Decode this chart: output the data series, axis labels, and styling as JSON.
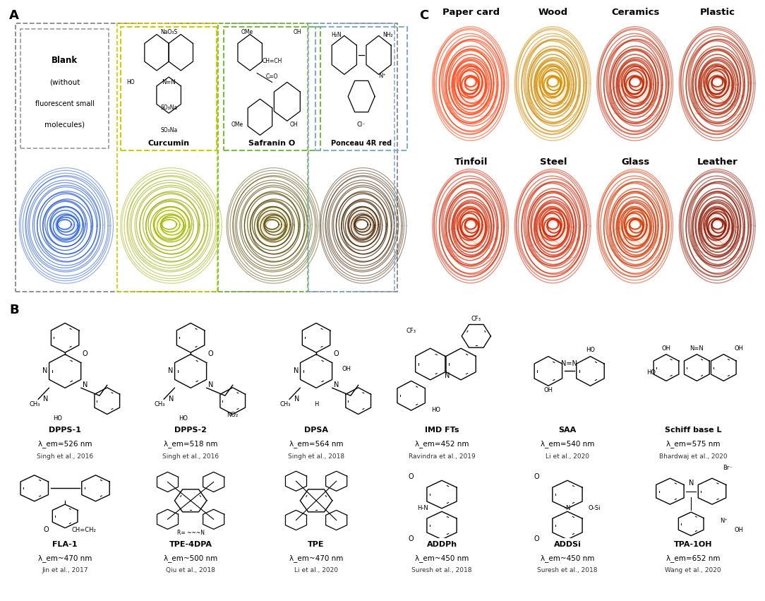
{
  "panel_A_label": "A",
  "panel_B_label": "B",
  "panel_C_label": "C",
  "surface_labels_row1": [
    "Paper card",
    "Wood",
    "Ceramics",
    "Plastic"
  ],
  "surface_labels_row2": [
    "Tinfoil",
    "Steel",
    "Glass",
    "Leather"
  ],
  "compounds_row1": [
    {
      "name": "DPPS-1",
      "lambda": "λ_em=526 nm",
      "ref": "Singh et al., 2016"
    },
    {
      "name": "DPPS-2",
      "lambda": "λ_em=518 nm",
      "ref": "Singh et al., 2016"
    },
    {
      "name": "DPSA",
      "lambda": "λ_em=564 nm",
      "ref": "Singh et al., 2018"
    },
    {
      "name": "IMD FTs",
      "lambda": "λ_em=452 nm",
      "ref": "Ravindra et al., 2019"
    },
    {
      "name": "SAA",
      "lambda": "λ_em=540 nm",
      "ref": "Li et al., 2020"
    },
    {
      "name": "Schiff base L",
      "lambda": "λ_em=575 nm",
      "ref": "Bhardwaj et al., 2020"
    }
  ],
  "compounds_row2": [
    {
      "name": "FLA-1",
      "lambda": "λ_em~470 nm",
      "ref": "Jin et al., 2017"
    },
    {
      "name": "TPE-4DPA",
      "lambda": "λ_em~500 nm",
      "ref": "Qiu et al., 2018"
    },
    {
      "name": "TPE",
      "lambda": "λ_em~470 nm",
      "ref": "Li et al., 2020"
    },
    {
      "name": "ADDPh",
      "lambda": "λ_em~450 nm",
      "ref": "Suresh et al., 2018"
    },
    {
      "name": "ADDSi",
      "lambda": "λ_em~450 nm",
      "ref": "Suresh et al., 2018"
    },
    {
      "name": "TPA-1OH",
      "lambda": "λ_em=652 nm",
      "ref": "Wang et al., 2020"
    }
  ],
  "bg_color": "#FFFFFF",
  "fp_A_styles": [
    {
      "bg": "#000020",
      "ridge": "#2255CC",
      "glow": "#4488FF"
    },
    {
      "bg": "#0A0A00",
      "ridge": "#99AA00",
      "glow": "#CCDD00"
    },
    {
      "bg": "#050300",
      "ridge": "#554400",
      "glow": "#887700"
    },
    {
      "bg": "#050200",
      "ridge": "#442200",
      "glow": "#663300"
    }
  ],
  "fp_C_row1_styles": [
    {
      "bg": "#CC1800",
      "ridge": "#FF3300",
      "glow": "#FF6644"
    },
    {
      "bg": "#4A3800",
      "ridge": "#CC8800",
      "glow": "#FFAA00"
    },
    {
      "bg": "#080000",
      "ridge": "#BB2200",
      "glow": "#EE4400"
    },
    {
      "bg": "#060000",
      "ridge": "#AA2000",
      "glow": "#DD3300"
    }
  ],
  "fp_C_row2_styles": [
    {
      "bg": "#060000",
      "ridge": "#CC2200",
      "glow": "#FF4400"
    },
    {
      "bg": "#060000",
      "ridge": "#CC2200",
      "glow": "#FF4400"
    },
    {
      "bg": "#060000",
      "ridge": "#CC3300",
      "glow": "#FF5500"
    },
    {
      "bg": "#030000",
      "ridge": "#881500",
      "glow": "#CC2200"
    }
  ]
}
